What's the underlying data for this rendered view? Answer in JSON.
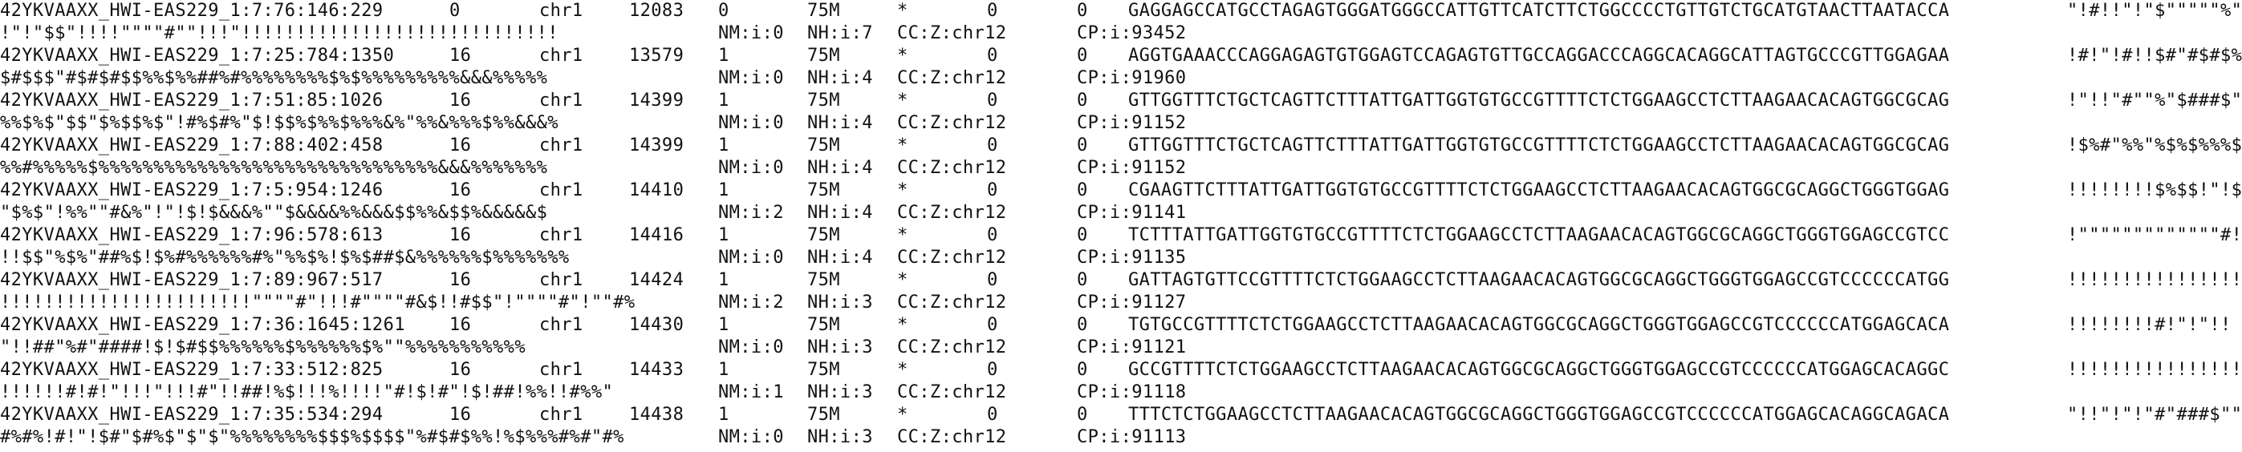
{
  "records": [
    {
      "line1": {
        "qname": "42YKVAAXX_HWI-EAS229_1:7:76:146:229",
        "flag": "0",
        "rname": "chr1",
        "pos": "12083",
        "mapq": "0",
        "cigar": "75M",
        "rnext": "*",
        "pnext": "0",
        "tlen": "0",
        "seq": "GAGGAGCCATGCCTAGAGTGGGATGGGCCATTGTTCATCTTCTGGCCCCTGTTGTCTGCATGTAACTTAATACCA",
        "qual_start": "\"!#!!\"!\"$\"\"\"\"\"%\""
      },
      "line2": {
        "qual_rest": "!\"!\"$$\"!!!!\"\"\"\"#\"\"!!!\"!!!!!!!!!!!!!!!!!!!!!!!!!!!!!",
        "nm": "NM:i:0",
        "nh": "NH:i:7",
        "cc": "CC:Z:chr12",
        "cp": "CP:i:93452"
      }
    },
    {
      "line1": {
        "qname": "42YKVAAXX_HWI-EAS229_1:7:25:784:1350",
        "flag": "16",
        "rname": "chr1",
        "pos": "13579",
        "mapq": "1",
        "cigar": "75M",
        "rnext": "*",
        "pnext": "0",
        "tlen": "0",
        "seq": "AGGTGAAACCCAGGAGAGTGTGGAGTCCAGAGTGTTGCCAGGACCCAGGCACAGGCATTAGTGCCCGTTGGAGAA",
        "qual_start": "!#!\"!#!!$#\"#$#$%"
      },
      "line2": {
        "qual_rest": "$#$$$\"#$#$#$$%%$%%##%#%%%%%%%%$%$%%%%%%%%%&&&%%%%%",
        "nm": "NM:i:0",
        "nh": "NH:i:4",
        "cc": "CC:Z:chr12",
        "cp": "CP:i:91960"
      }
    },
    {
      "line1": {
        "qname": "42YKVAAXX_HWI-EAS229_1:7:51:85:1026",
        "flag": "16",
        "rname": "chr1",
        "pos": "14399",
        "mapq": "1",
        "cigar": "75M",
        "rnext": "*",
        "pnext": "0",
        "tlen": "0",
        "seq": "GTTGGTTTCTGCTCAGTTCTTTATTGATTGGTGTGCCGTTTTCTCTGGAAGCCTCTTAAGAACACAGTGGCGCAG",
        "qual_start": "!\"!!\"#\"\"%\"$###$\""
      },
      "line2": {
        "qual_rest": "%%$%$\"$$\"$%$$%$\"!#%$#%\"$!$$%$%%$%%%&%\"%%&%%%$%%&&&%",
        "nm": "NM:i:0",
        "nh": "NH:i:4",
        "cc": "CC:Z:chr12",
        "cp": "CP:i:91152"
      }
    },
    {
      "line1": {
        "qname": "42YKVAAXX_HWI-EAS229_1:7:88:402:458",
        "flag": "16",
        "rname": "chr1",
        "pos": "14399",
        "mapq": "1",
        "cigar": "75M",
        "rnext": "*",
        "pnext": "0",
        "tlen": "0",
        "seq": "GTTGGTTTCTGCTCAGTTCTTTATTGATTGGTGTGCCGTTTTCTCTGGAAGCCTCTTAAGAACACAGTGGCGCAG",
        "qual_start": "!$%#\"%%\"%$%$%%%$"
      },
      "line2": {
        "qual_rest": "%%#%%%%%$%%%%%%%%%%%%%%%%%%%%%%%%%%%%%%%&&&%%%%%%%",
        "nm": "NM:i:0",
        "nh": "NH:i:4",
        "cc": "CC:Z:chr12",
        "cp": "CP:i:91152"
      }
    },
    {
      "line1": {
        "qname": "42YKVAAXX_HWI-EAS229_1:7:5:954:1246",
        "flag": "16",
        "rname": "chr1",
        "pos": "14410",
        "mapq": "1",
        "cigar": "75M",
        "rnext": "*",
        "pnext": "0",
        "tlen": "0",
        "seq": "CGAAGTTCTTTATTGATTGGTGTGCCGTTTTCTCTGGAAGCCTCTTAAGAACACAGTGGCGCAGGCTGGGTGGAG",
        "qual_start": "!!!!!!!!$%$$!\"!$"
      },
      "line2": {
        "qual_rest": "\"$%$\"!%%\"\"#&%\"!\"!$!$&&&%\"\"$&&&&%%&&&$$%%&$$%&&&&&$",
        "nm": "NM:i:2",
        "nh": "NH:i:4",
        "cc": "CC:Z:chr12",
        "cp": "CP:i:91141"
      }
    },
    {
      "line1": {
        "qname": "42YKVAAXX_HWI-EAS229_1:7:96:578:613",
        "flag": "16",
        "rname": "chr1",
        "pos": "14416",
        "mapq": "1",
        "cigar": "75M",
        "rnext": "*",
        "pnext": "0",
        "tlen": "0",
        "seq": "TCTTTATTGATTGGTGTGCCGTTTTCTCTGGAAGCCTCTTAAGAACACAGTGGCGCAGGCTGGGTGGAGCCGTCC",
        "qual_start": "!\"\"\"\"\"\"\"\"\"\"\"\"\"#!!"
      },
      "line2": {
        "qual_rest": "!!$$\"%$%\"##%$!$%#%%%%%%#%\"%%$%!$%$##$&%%%%%%$%%%%%%%",
        "nm": "NM:i:0",
        "nh": "NH:i:4",
        "cc": "CC:Z:chr12",
        "cp": "CP:i:91135"
      }
    },
    {
      "line1": {
        "qname": "42YKVAAXX_HWI-EAS229_1:7:89:967:517",
        "flag": "16",
        "rname": "chr1",
        "pos": "14424",
        "mapq": "1",
        "cigar": "75M",
        "rnext": "*",
        "pnext": "0",
        "tlen": "0",
        "seq": "GATTAGTGTTCCGTTTTCTCTGGAAGCCTCTTAAGAACACAGTGGCGCAGGCTGGGTGGAGCCGTCCCCCCATGG",
        "qual_start": "!!!!!!!!!!!!!!!!"
      },
      "line2": {
        "qual_rest": "!!!!!!!!!!!!!!!!!!!!!!!\"\"\"\"#\"!!!#\"\"\"\"#&$!!#$$\"!\"\"\"\"#\"!\"\"#%",
        "nm": "NM:i:2",
        "nh": "NH:i:3",
        "cc": "CC:Z:chr12",
        "cp": "CP:i:91127"
      }
    },
    {
      "line1": {
        "qname": "42YKVAAXX_HWI-EAS229_1:7:36:1645:1261",
        "flag": "16",
        "rname": "chr1",
        "pos": "14430",
        "mapq": "1",
        "cigar": "75M",
        "rnext": "*",
        "pnext": "0",
        "tlen": "0",
        "seq": "TGTGCCGTTTTCTCTGGAAGCCTCTTAAGAACACAGTGGCGCAGGCTGGGTGGAGCCGTCCCCCCATGGAGCACA",
        "qual_start": "!!!!!!!!#!\"!\"!!"
      },
      "line2": {
        "qual_rest": "\"!!##\"%#\"####!$!$#$$%%%%%%$%%%%%%$%\"\"%%%%%%%%%%%",
        "nm": "NM:i:0",
        "nh": "NH:i:3",
        "cc": "CC:Z:chr12",
        "cp": "CP:i:91121"
      }
    },
    {
      "line1": {
        "qname": "42YKVAAXX_HWI-EAS229_1:7:33:512:825",
        "flag": "16",
        "rname": "chr1",
        "pos": "14433",
        "mapq": "1",
        "cigar": "75M",
        "rnext": "*",
        "pnext": "0",
        "tlen": "0",
        "seq": "GCCGTTTTCTCTGGAAGCCTCTTAAGAACACAGTGGCGCAGGCTGGGTGGAGCCGTCCCCCCATGGAGCACAGGC",
        "qual_start": "!!!!!!!!!!!!!!!!"
      },
      "line2": {
        "qual_rest": "!!!!!!#!#!\"!!!\"!!!#\"!!##!%$!!!%!!!!\"#!$!#\"!$!##!%%!!#%%\"",
        "nm": "NM:i:1",
        "nh": "NH:i:3",
        "cc": "CC:Z:chr12",
        "cp": "CP:i:91118"
      }
    },
    {
      "line1": {
        "qname": "42YKVAAXX_HWI-EAS229_1:7:35:534:294",
        "flag": "16",
        "rname": "chr1",
        "pos": "14438",
        "mapq": "1",
        "cigar": "75M",
        "rnext": "*",
        "pnext": "0",
        "tlen": "0",
        "seq": "TTTCTCTGGAAGCCTCTTAAGAACACAGTGGCGCAGGCTGGGTGGAGCCGTCCCCCCATGGAGCACAGGCAGACA",
        "qual_start": "\"!!\"!\"!\"#\"###$\"\""
      },
      "line2": {
        "qual_rest": "#%#%!#!\"!$#\"$#%$\"$\"$\"%%%%%%%%$$$%$$$$\"%#$#$%%!%$%%%#%#\"#%",
        "nm": "NM:i:0",
        "nh": "NH:i:3",
        "cc": "CC:Z:chr12",
        "cp": "CP:i:91113"
      }
    }
  ]
}
